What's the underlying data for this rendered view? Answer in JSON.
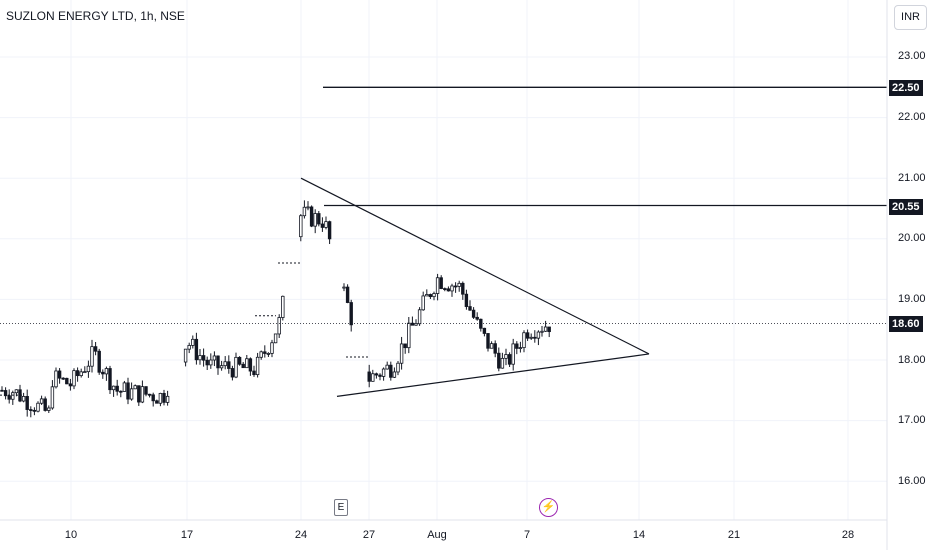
{
  "title": "SUZLON ENERGY LTD, 1h, NSE",
  "currency": "INR",
  "y_axis_labels": [
    "23.00",
    "22.00",
    "21.00",
    "20.00",
    "19.00",
    "18.00",
    "17.00",
    "16.00"
  ],
  "x_axis_labels": [
    "10",
    "17",
    "24",
    "27",
    "Aug",
    "7",
    "14",
    "21",
    "28"
  ],
  "markers": {
    "earnings": "E",
    "dividend_icon": "flash-icon"
  },
  "price_tags": {
    "level_high": "22.50",
    "level_mid": "20.55",
    "last_price": "18.60"
  },
  "colors": {
    "candle": "#131722",
    "accent_event": "#9c27b0",
    "grid": "#f0f3fa"
  },
  "chart_data": {
    "type": "candlestick",
    "title": "SUZLON ENERGY LTD, 1h, NSE",
    "ylim": [
      15.5,
      23.5
    ],
    "grid": true,
    "horizontal_levels": [
      22.5,
      20.55
    ],
    "last_price": 18.6,
    "triangle": {
      "upper_line": [
        {
          "date": "Jul 24",
          "y": 21.0
        },
        {
          "date": "Aug 14",
          "y": 18.1
        }
      ],
      "lower_line": [
        {
          "date": "Jul 26",
          "y": 17.4
        },
        {
          "date": "Aug 14",
          "y": 18.1
        }
      ]
    },
    "series": [
      {
        "name": "SUZLON",
        "close_path": [
          {
            "date": "Jul 5",
            "close": 17.5
          },
          {
            "date": "Jul 7",
            "close": 17.1
          },
          {
            "date": "Jul 8",
            "close": 18.0
          },
          {
            "date": "Jul 10",
            "close": 17.6
          },
          {
            "date": "Jul 11",
            "close": 18.1
          },
          {
            "date": "Jul 12",
            "close": 17.5
          },
          {
            "date": "Jul 14",
            "close": 17.4
          },
          {
            "date": "Jul 17",
            "close": 18.3
          },
          {
            "date": "Jul 18",
            "close": 17.9
          },
          {
            "date": "Jul 20",
            "close": 17.85
          },
          {
            "date": "Jul 21",
            "close": 18.6
          },
          {
            "date": "Jul 24",
            "close": 20.4
          },
          {
            "date": "Jul 25",
            "close": 20.3
          },
          {
            "date": "Jul 26",
            "close": 19.0
          },
          {
            "date": "Jul 27",
            "close": 17.7
          },
          {
            "date": "Jul 28",
            "close": 17.9
          },
          {
            "date": "Jul 31",
            "close": 18.6
          },
          {
            "date": "Aug 1",
            "close": 19.35
          },
          {
            "date": "Aug 2",
            "close": 19.2
          },
          {
            "date": "Aug 3",
            "close": 18.4
          },
          {
            "date": "Aug 4",
            "close": 17.9
          },
          {
            "date": "Aug 7",
            "close": 18.5
          },
          {
            "date": "Aug 8",
            "close": 18.6
          }
        ]
      }
    ]
  }
}
